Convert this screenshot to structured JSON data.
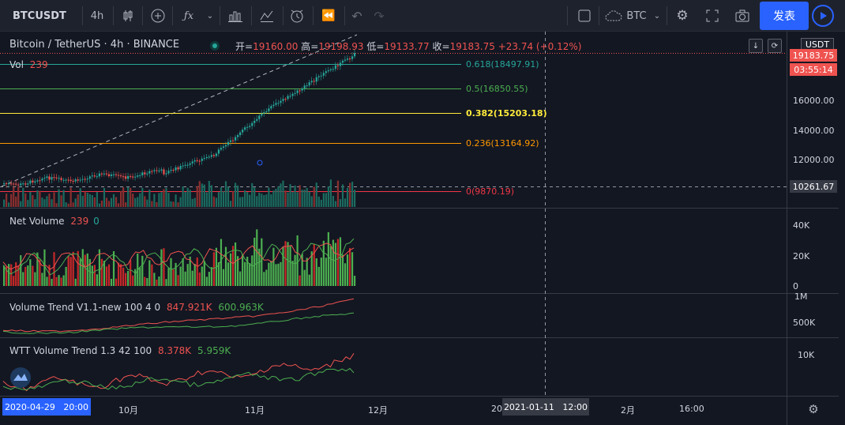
{
  "toolbar": {
    "symbol": "BTCUSDT",
    "interval": "4h",
    "compare_currency": "BTC",
    "publish_label": "发表"
  },
  "legend": {
    "title": "Bitcoin / TetherUS · 4h · BINANCE",
    "open_label": "开",
    "open": "19160.00",
    "high_label": "高",
    "high": "19198.93",
    "low_label": "低",
    "low": "19133.77",
    "close_label": "收",
    "close": "19183.75",
    "change": "+23.74 (+0.12%)"
  },
  "vol": {
    "label": "Vol",
    "value": "239"
  },
  "fib": [
    {
      "level": "0.618(18497.91)",
      "color": "#26a69a"
    },
    {
      "level": "0.5(16850.55)",
      "color": "#4caf50"
    },
    {
      "level": "0.382(15203.18)",
      "color": "#ffeb3b"
    },
    {
      "level": "0.236(13164.92)",
      "color": "#ff9800"
    },
    {
      "level": "0(9870.19)",
      "color": "#f23645"
    }
  ],
  "price_axis": {
    "currency": "USDT",
    "last_price": "19183.75",
    "countdown": "03:55:14",
    "cursor_price": "10261.67",
    "ticks": [
      "16000.00",
      "14000.00",
      "12000.00"
    ]
  },
  "net_volume": {
    "label": "Net Volume",
    "v1": "239",
    "v2": "0",
    "ticks": [
      "40K",
      "20K",
      "0"
    ]
  },
  "volume_trend": {
    "label": "Volume Trend V1.1-new 100 4 0",
    "v1": "847.921K",
    "v2": "600.963K",
    "ticks": [
      "1M",
      "500K"
    ]
  },
  "wtt": {
    "label": "WTT Volume Trend 1.3 42 100",
    "v1": "8.378K",
    "v2": "5.959K",
    "ticks": [
      "10K"
    ]
  },
  "time_axis": {
    "start_label": "2020-04-29   20:00",
    "labels": [
      "10月",
      "11月",
      "12月",
      "20",
      "2月",
      "16:00"
    ],
    "cursor_label": "2021-01-11   12:00"
  },
  "colors": {
    "up": "#26a69a",
    "down": "#ef5350",
    "bg": "#131722",
    "accent": "#2962ff"
  }
}
